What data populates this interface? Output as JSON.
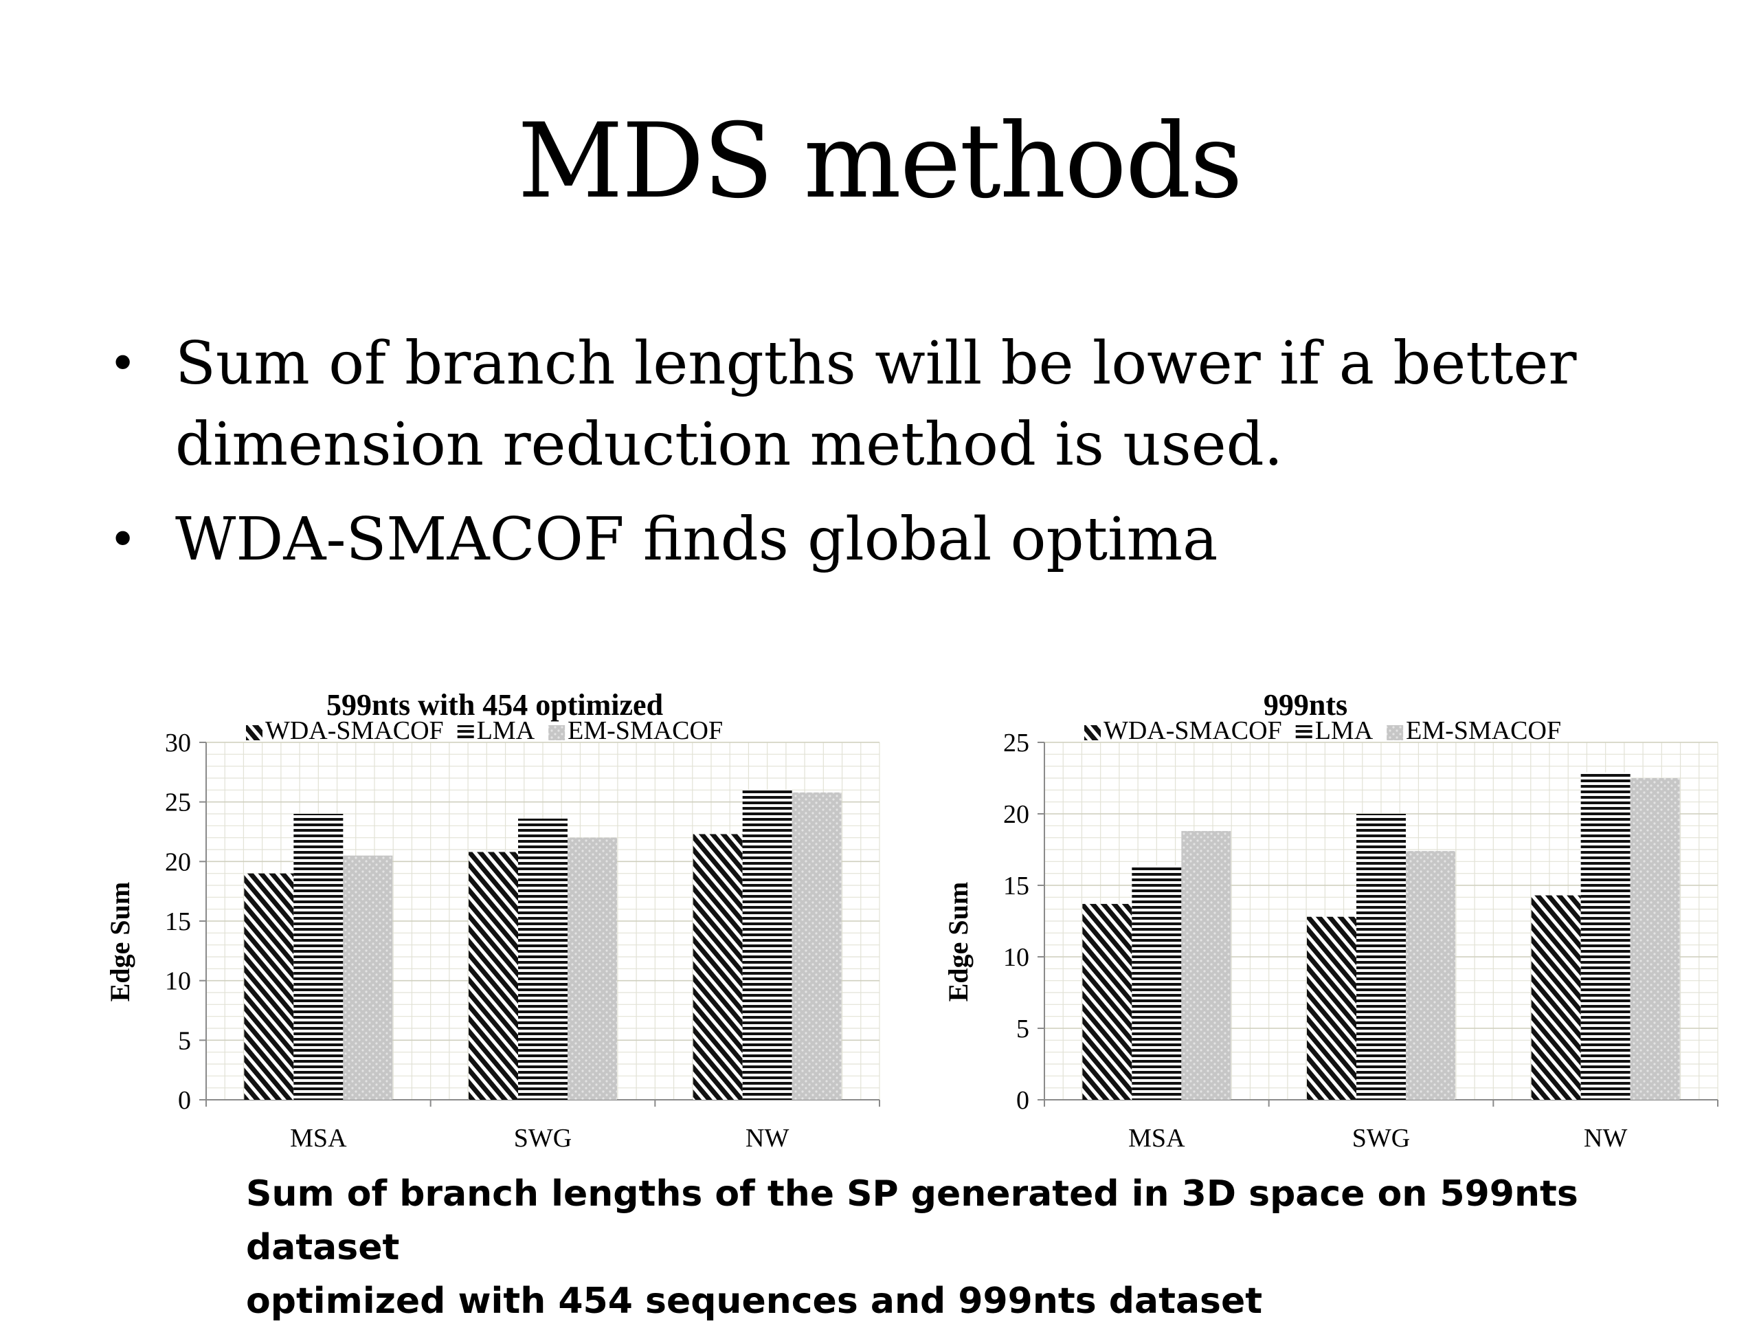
{
  "slide": {
    "title": "MDS methods",
    "bullets": [
      "Sum of branch lengths will be lower if a better dimension reduction method is used.",
      "WDA-SMACOF finds global optima"
    ],
    "caption_lines": [
      "Sum of branch lengths of the SP generated in 3D space on 599nts dataset",
      "optimized with 454 sequences and 999nts dataset"
    ]
  },
  "chart_data": [
    {
      "type": "bar",
      "title": "599nts with 454 optimized",
      "xlabel": "",
      "ylabel": "Edge Sum",
      "categories": [
        "MSA",
        "SWG",
        "NW"
      ],
      "ylim": [
        0,
        30
      ],
      "yticks": [
        "0",
        "5",
        "10",
        "15",
        "20",
        "25",
        "30"
      ],
      "grid": true,
      "legend_position": "top",
      "series": [
        {
          "name": "WDA-SMACOF",
          "values": [
            19.0,
            20.8,
            22.3
          ],
          "pattern": "diagonal"
        },
        {
          "name": "LMA",
          "values": [
            24.0,
            23.6,
            26.0
          ],
          "pattern": "horizontal"
        },
        {
          "name": "EM-SMACOF",
          "values": [
            20.5,
            22.0,
            25.8
          ],
          "pattern": "dotted"
        }
      ]
    },
    {
      "type": "bar",
      "title": "999nts",
      "xlabel": "",
      "ylabel": "Edge Sum",
      "categories": [
        "MSA",
        "SWG",
        "NW"
      ],
      "ylim": [
        0,
        25
      ],
      "yticks": [
        "0",
        "5",
        "10",
        "15",
        "20",
        "25"
      ],
      "grid": true,
      "legend_position": "top",
      "series": [
        {
          "name": "WDA-SMACOF",
          "values": [
            13.7,
            12.8,
            14.3
          ],
          "pattern": "diagonal"
        },
        {
          "name": "LMA",
          "values": [
            16.4,
            20.0,
            22.9
          ],
          "pattern": "horizontal"
        },
        {
          "name": "EM-SMACOF",
          "values": [
            18.8,
            17.4,
            22.5
          ],
          "pattern": "dotted"
        }
      ]
    }
  ]
}
